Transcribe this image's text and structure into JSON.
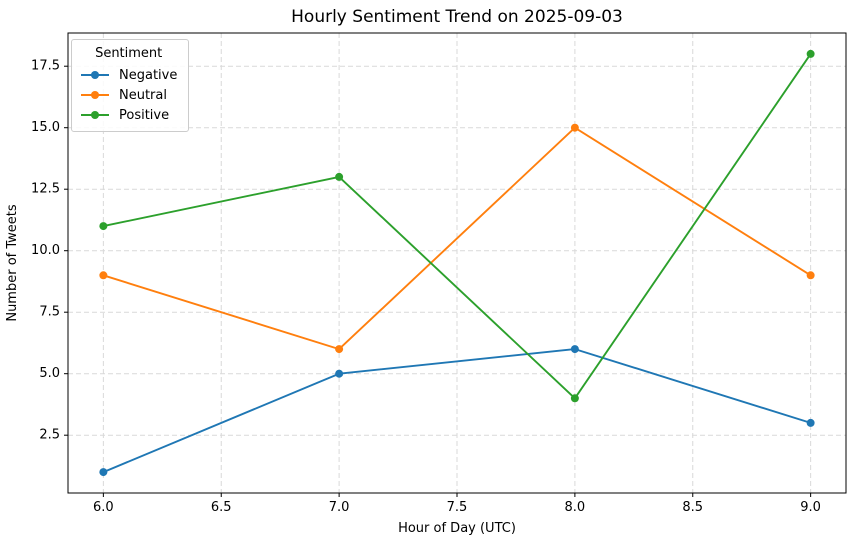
{
  "chart_data": {
    "type": "line",
    "title": "Hourly Sentiment Trend on 2025-09-03",
    "xlabel": "Hour of Day (UTC)",
    "ylabel": "Number of Tweets",
    "x": [
      6,
      7,
      8,
      9
    ],
    "series": [
      {
        "name": "Negative",
        "color": "#1f77b4",
        "values": [
          1,
          5,
          6,
          3
        ]
      },
      {
        "name": "Neutral",
        "color": "#ff7f0e",
        "values": [
          9,
          6,
          15,
          9
        ]
      },
      {
        "name": "Positive",
        "color": "#2ca02c",
        "values": [
          11,
          13,
          4,
          18
        ]
      }
    ],
    "xlim": [
      5.85,
      9.15
    ],
    "ylim": [
      0.15,
      18.85
    ],
    "xticks": [
      6.0,
      6.5,
      7.0,
      7.5,
      8.0,
      8.5,
      9.0
    ],
    "xtick_labels": [
      "6.0",
      "6.5",
      "7.0",
      "7.5",
      "8.0",
      "8.5",
      "9.0"
    ],
    "yticks": [
      2.5,
      5.0,
      7.5,
      10.0,
      12.5,
      15.0,
      17.5
    ],
    "ytick_labels": [
      "2.5",
      "5.0",
      "7.5",
      "10.0",
      "12.5",
      "15.0",
      "17.5"
    ],
    "grid": true,
    "legend": {
      "title": "Sentiment",
      "position": "upper-left"
    }
  },
  "style": {
    "background_color": "#ffffff",
    "grid_color": "#d9d9d9",
    "spine_color": "#000000",
    "text_color": "#000000",
    "line_width": 1.9,
    "marker_radius": 4
  }
}
